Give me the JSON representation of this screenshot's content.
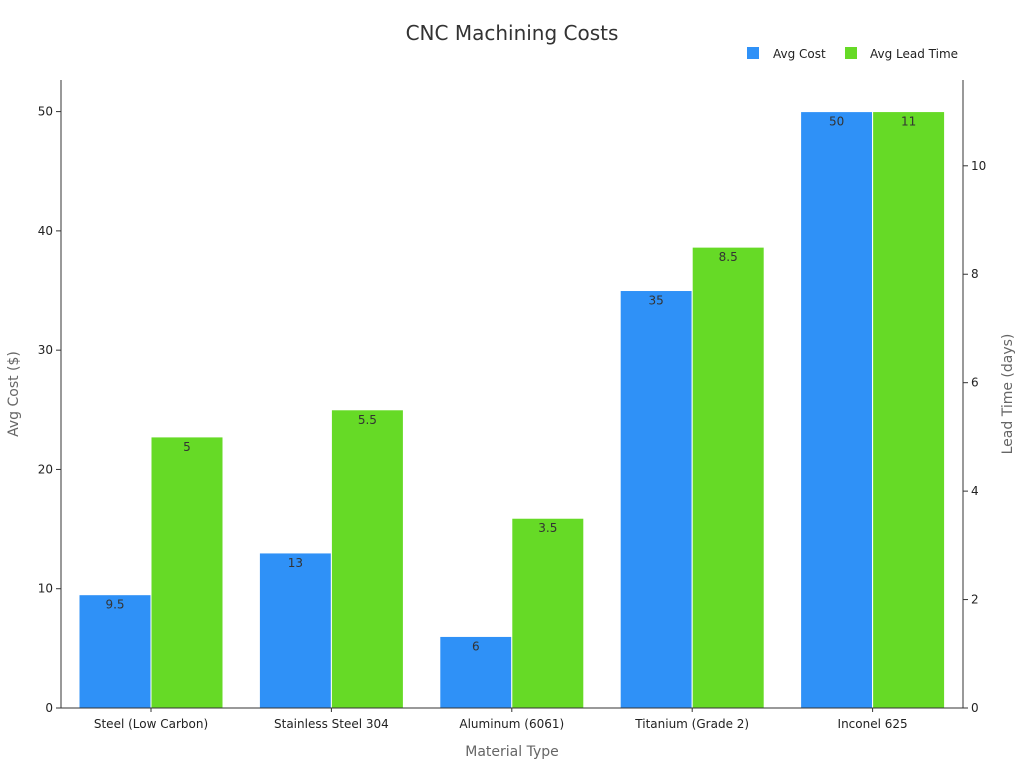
{
  "chart_data": {
    "type": "bar",
    "title": "CNC Machining Costs",
    "xlabel": "Material Type",
    "ylabel": "Avg Cost ($)",
    "y2label": "Lead Time (days)",
    "categories": [
      "Steel (Low Carbon)",
      "Stainless Steel 304",
      "Aluminum (6061)",
      "Titanium (Grade 2)",
      "Inconel 625"
    ],
    "series": [
      {
        "name": "Avg Cost",
        "axis": "left",
        "color": "#2f91f7",
        "values": [
          9.5,
          13,
          6,
          35,
          50
        ],
        "labels": [
          "9.5",
          "13",
          "6",
          "35",
          "50"
        ]
      },
      {
        "name": "Avg Lead Time",
        "axis": "right",
        "color": "#66da26",
        "values": [
          5,
          5.5,
          3.5,
          8.5,
          11
        ],
        "labels": [
          "5",
          "5.5",
          "3.5",
          "8.5",
          "11"
        ]
      }
    ],
    "ylim": [
      0,
      52.5
    ],
    "yticks": [
      0,
      10,
      20,
      30,
      40,
      50
    ],
    "ytick_labels": [
      "0",
      "10",
      "20",
      "30",
      "40",
      "50"
    ],
    "y2lim": [
      0,
      11.55
    ],
    "y2ticks": [
      0,
      2,
      4,
      6,
      8,
      10
    ],
    "y2tick_labels": [
      "0",
      "2",
      "4",
      "6",
      "8",
      "10"
    ],
    "legend_position": "top-right",
    "grid": false
  }
}
